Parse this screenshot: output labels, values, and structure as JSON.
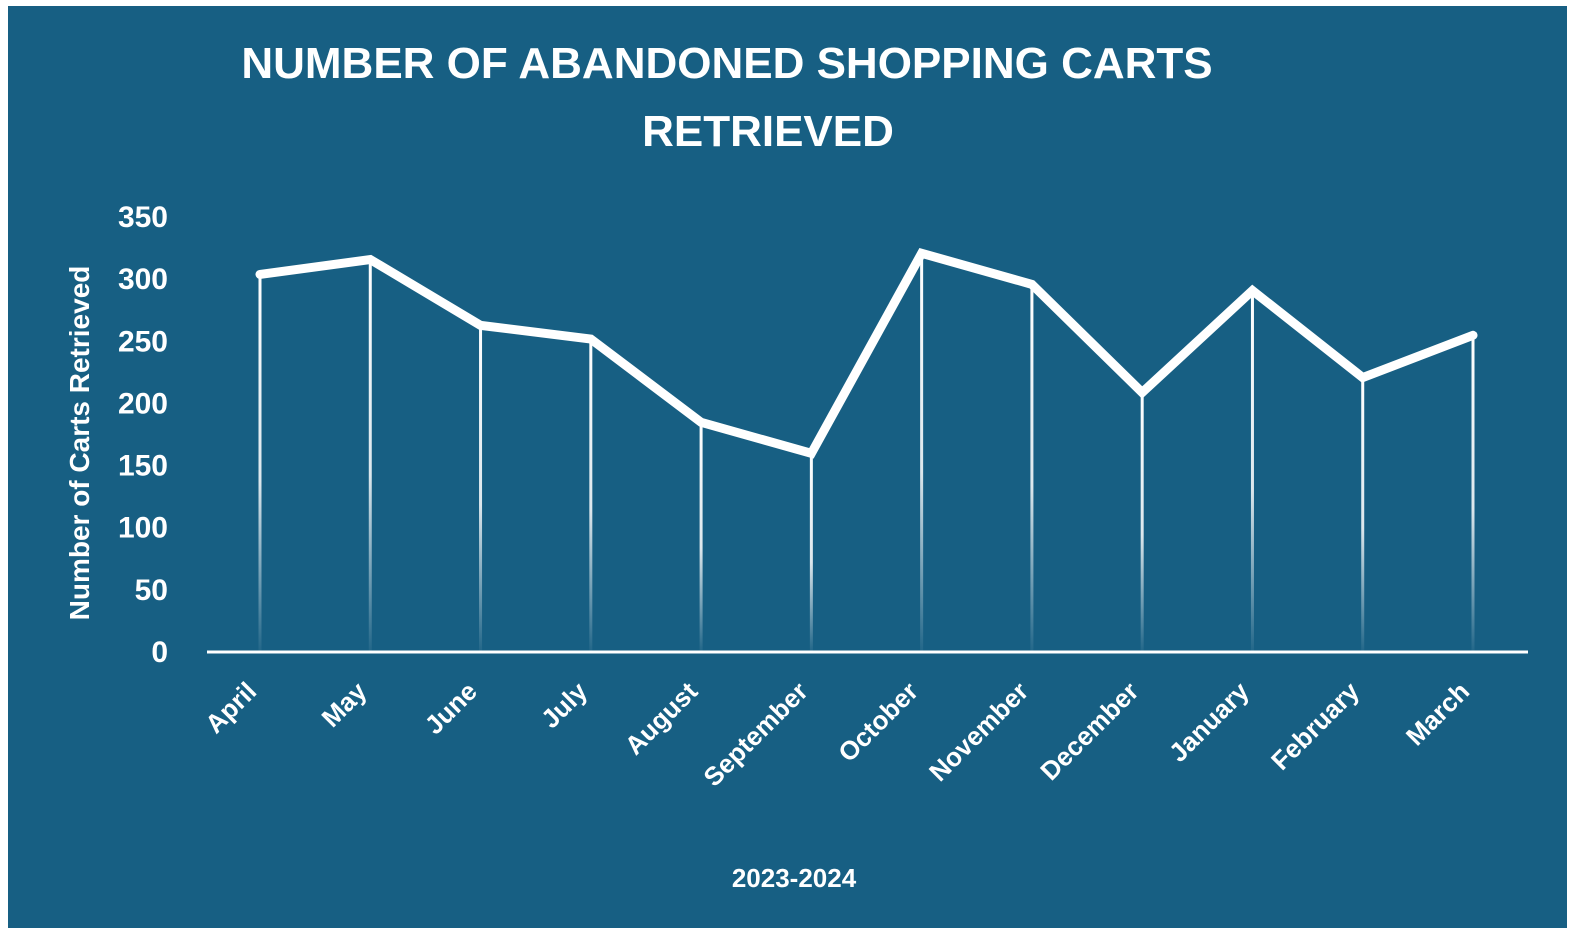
{
  "colors": {
    "background": "#175f83",
    "foreground": "#ffffff"
  },
  "chart_data": {
    "type": "line",
    "title_lines": [
      "NUMBER OF ABANDONED SHOPPING CARTS",
      "RETRIEVED"
    ],
    "xlabel": "2023-2024",
    "ylabel": "Number of Carts Retrieved",
    "categories": [
      "April",
      "May",
      "June",
      "July",
      "August",
      "September",
      "October",
      "November",
      "December",
      "January",
      "February",
      "March"
    ],
    "values": [
      303,
      315,
      262,
      251,
      184,
      159,
      320,
      295,
      208,
      290,
      220,
      254
    ],
    "ylim": [
      0,
      350
    ],
    "yticks": [
      0,
      50,
      100,
      150,
      200,
      250,
      300,
      350
    ],
    "drop_lines": true,
    "legend": "none",
    "grid": false
  }
}
